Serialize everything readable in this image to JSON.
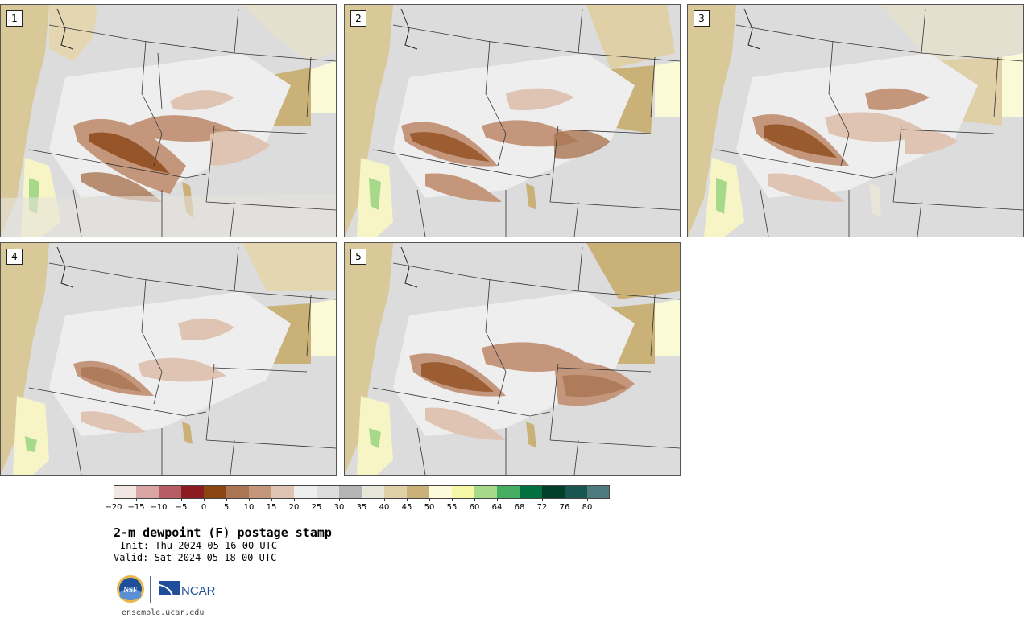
{
  "panels": [
    {
      "number": "1"
    },
    {
      "number": "2"
    },
    {
      "number": "3"
    },
    {
      "number": "4"
    },
    {
      "number": "5"
    }
  ],
  "colorbar": {
    "ticks": [
      "−20",
      "−15",
      "−10",
      "−5",
      "0",
      "5",
      "10",
      "15",
      "20",
      "25",
      "30",
      "35",
      "40",
      "45",
      "50",
      "55",
      "60",
      "64",
      "68",
      "72",
      "76",
      "80"
    ],
    "colors": [
      "#f2e6e3",
      "#d9a4a4",
      "#b65d63",
      "#8c1a22",
      "#8b4513",
      "#a97552",
      "#c4977c",
      "#dfc4b3",
      "#eeeeee",
      "#dddddd",
      "#b4b4b4",
      "#e6e5d8",
      "#dfd0a8",
      "#c9b178",
      "#fcfad8",
      "#f6f7a6",
      "#a6d98a",
      "#46ae62",
      "#007040",
      "#00402b",
      "#1a5650",
      "#4f7b7e"
    ]
  },
  "info": {
    "title": "2-m dewpoint (F) postage stamp",
    "init": "Init: Thu 2024-05-16 00 UTC",
    "valid": "Valid: Sat 2024-05-18 00 UTC"
  },
  "logos": {
    "nsf": "NSF",
    "ncar": "NCAR"
  },
  "footer": {
    "site": "ensemble.ucar.edu"
  }
}
